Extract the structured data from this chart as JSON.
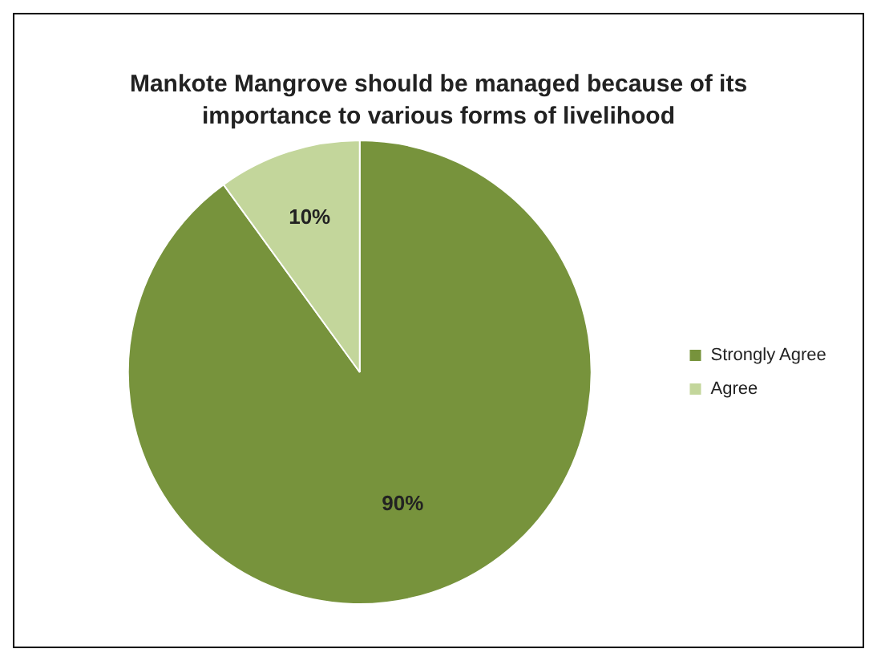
{
  "chart_data": {
    "type": "pie",
    "title": "Mankote Mangrove should be managed because of its importance to various forms of livelihood",
    "categories": [
      "Strongly Agree",
      "Agree"
    ],
    "values": [
      90,
      10
    ],
    "colors": [
      "#77933c",
      "#c3d69b"
    ],
    "value_labels": [
      "90%",
      "10%"
    ],
    "legend": "right"
  }
}
